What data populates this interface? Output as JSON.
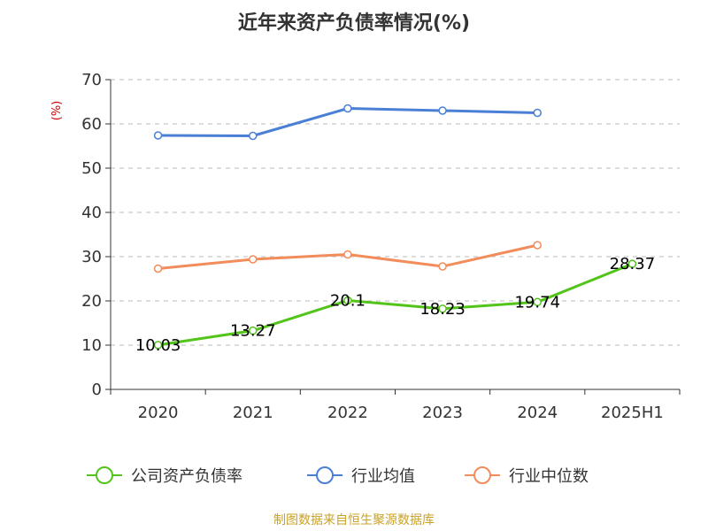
{
  "chart_data": {
    "type": "line",
    "title": "近年来资产负债率情况(%)",
    "ylabel": "(%)",
    "xlabel": "",
    "categories": [
      "2020",
      "2021",
      "2022",
      "2023",
      "2024",
      "2025H1"
    ],
    "ylim": [
      0,
      70
    ],
    "yticks": [
      0,
      10,
      20,
      30,
      40,
      50,
      60,
      70
    ],
    "grid": true,
    "legend_position": "bottom",
    "series": [
      {
        "name": "公司资产负债率",
        "color": "#52c41a",
        "values": [
          10.03,
          13.27,
          20.1,
          18.23,
          19.74,
          28.37
        ],
        "labels": [
          "10.03",
          "13.27",
          "20.1",
          "18.23",
          "19.74",
          "28.37"
        ]
      },
      {
        "name": "行业均值",
        "color": "#4a7fd6",
        "values": [
          57.4,
          57.3,
          63.5,
          63.0,
          62.5,
          null
        ]
      },
      {
        "name": "行业中位数",
        "color": "#f28c5a",
        "values": [
          27.3,
          29.4,
          30.5,
          27.8,
          32.6,
          null
        ]
      }
    ],
    "source": "制图数据来自恒生聚源数据库"
  }
}
